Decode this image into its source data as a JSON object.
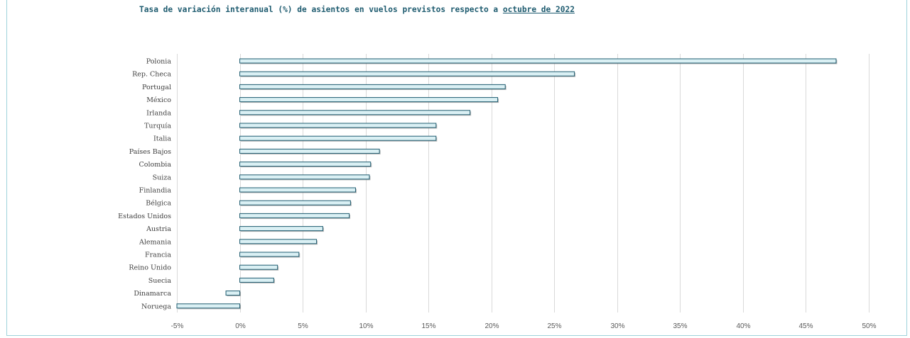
{
  "chart_data": {
    "type": "bar",
    "orientation": "horizontal",
    "title": "Tasa de variación interanual (%) de asientos en vuelos previstos respecto a",
    "title_emphasis": "octubre de 2022",
    "categories": [
      "Polonia",
      "Rep. Checa",
      "Portugal",
      "México",
      "Irlanda",
      "Turquía",
      "Italia",
      "Países Bajos",
      "Colombia",
      "Suiza",
      "Finlandia",
      "Bélgica",
      "Estados Unidos",
      "Austria",
      "Alemania",
      "Francia",
      "Reino Unido",
      "Suecia",
      "Dinamarca",
      "Noruega"
    ],
    "values": [
      47.4,
      26.6,
      21.1,
      20.5,
      18.3,
      15.6,
      15.6,
      11.1,
      10.4,
      10.3,
      9.2,
      8.8,
      8.7,
      6.6,
      6.1,
      4.7,
      3.0,
      2.7,
      -1.1,
      -5.0
    ],
    "xlim": [
      -5,
      50
    ],
    "x_ticks": [
      "-5%",
      "0%",
      "5%",
      "10%",
      "15%",
      "20%",
      "25%",
      "30%",
      "35%",
      "40%",
      "45%",
      "50%"
    ],
    "x_tick_values": [
      -5,
      0,
      5,
      10,
      15,
      20,
      25,
      30,
      35,
      40,
      45,
      50
    ],
    "grid": true,
    "colors": {
      "bar_fill": "#daf0f4",
      "bar_stroke": "#1f5c70",
      "bar_shadow": "#7f7f7f",
      "gridline": "#d9d9d9",
      "negative_tick": "#e0201b",
      "tick": "#595959",
      "title": "#1f5c70",
      "border": "#9fd3db"
    }
  }
}
